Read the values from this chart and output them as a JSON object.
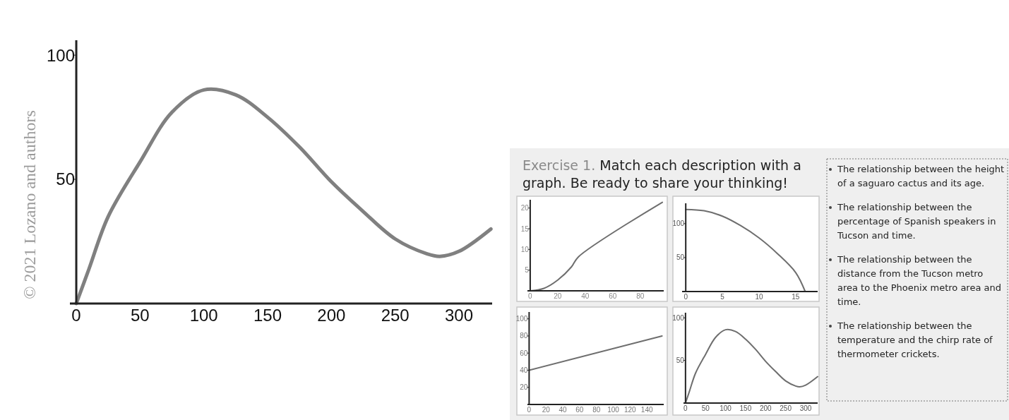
{
  "chart_data": [
    {
      "type": "line",
      "xlim": [
        -5,
        326
      ],
      "ylim": [
        0,
        106
      ],
      "xticks": [
        0,
        50,
        100,
        150,
        200,
        250,
        300
      ],
      "yticks": [
        50,
        100
      ],
      "color": "#808080",
      "annotations": [
        "© 2021 Lozano and authors"
      ],
      "x": [
        0,
        10,
        25,
        50,
        75,
        100,
        125,
        150,
        175,
        200,
        225,
        250,
        275,
        285,
        300,
        325
      ],
      "values": [
        0,
        14,
        35,
        57,
        77,
        86,
        84,
        75,
        63,
        49,
        37,
        26,
        20,
        19,
        21,
        30
      ]
    },
    {
      "type": "line",
      "xlim": [
        -2,
        97
      ],
      "ylim": [
        0,
        22
      ],
      "xticks": [
        0,
        20,
        40,
        60,
        80
      ],
      "yticks": [
        5,
        10,
        15,
        20
      ],
      "color": "#6e6e6e",
      "x": [
        0,
        10,
        20,
        30,
        35,
        96
      ],
      "values": [
        0,
        0.6,
        2.6,
        5.8,
        8.2,
        21.4
      ]
    },
    {
      "type": "line",
      "xlim": [
        -0.5,
        18
      ],
      "ylim": [
        0,
        130
      ],
      "xticks": [
        0,
        5,
        10,
        15
      ],
      "yticks": [
        50,
        100
      ],
      "color": "#6e6e6e",
      "x": [
        0,
        2.5,
        5,
        7.5,
        10,
        12.5,
        15,
        16.3
      ],
      "values": [
        121,
        119,
        111,
        97,
        79,
        56,
        28,
        0
      ]
    },
    {
      "type": "line",
      "xlim": [
        -2,
        160
      ],
      "ylim": [
        0,
        108
      ],
      "xticks": [
        0,
        20,
        40,
        60,
        80,
        100,
        120,
        140
      ],
      "yticks": [
        20,
        40,
        60,
        80,
        100
      ],
      "color": "#6e6e6e",
      "x": [
        0,
        158
      ],
      "values": [
        40,
        80
      ]
    },
    {
      "type": "line",
      "xlim": [
        -5,
        330
      ],
      "ylim": [
        0,
        106
      ],
      "xticks": [
        0,
        50,
        100,
        150,
        200,
        250,
        300
      ],
      "yticks": [
        50,
        100
      ],
      "color": "#6e6e6e",
      "x": [
        0,
        10,
        25,
        50,
        75,
        100,
        125,
        150,
        175,
        200,
        225,
        250,
        275,
        285,
        300,
        330
      ],
      "values": [
        0,
        14,
        35,
        57,
        77,
        86,
        84,
        75,
        63,
        49,
        37,
        26,
        20,
        19,
        21,
        31
      ]
    },
    {
      "type": "other",
      "title": "Exercise 1.",
      "subtitle": "Match each description with a graph.  Be ready to share your thinking!",
      "annotations": [
        "The relationship between the height of a saguaro cactus and its age.",
        "The relationship between the percentage of Spanish speakers in Tucson and time.",
        "The relationship between the distance from the Tucson metro area to the Phoenix metro area and time.",
        "The relationship between the temperature and the chirp rate of thermometer crickets."
      ]
    }
  ]
}
